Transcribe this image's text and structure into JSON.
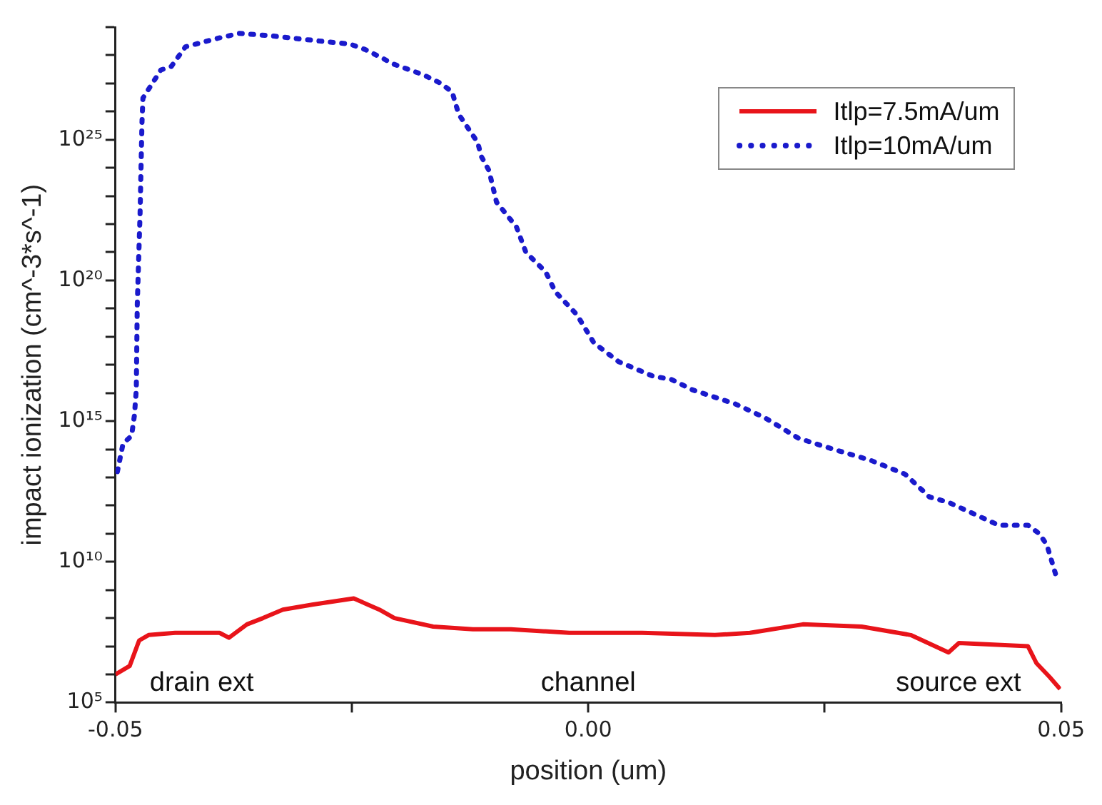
{
  "chart_data": {
    "type": "line",
    "xlabel": "position (um)",
    "ylabel": "impact ionization (cm^-3*s^-1)",
    "log": "y",
    "grid": false,
    "legend": "top right",
    "marker": "none",
    "xlim": [
      -0.05,
      0.05
    ],
    "xticks": [
      -0.05,
      {
        "value": -0.025,
        "label": null
      },
      {
        "value": 0,
        "label": "0.00"
      },
      {
        "value": 0.025,
        "label": null
      },
      0.05
    ],
    "ylim": [
      100000.0,
      1e+29
    ],
    "yticks": [
      {
        "value": 100000.0,
        "label": "10⁵"
      },
      {
        "value": 1000000.0,
        "label": null
      },
      {
        "value": 10000000.0,
        "label": null
      },
      {
        "value": 100000000.0,
        "label": null
      },
      {
        "value": 1000000000.0,
        "label": null
      },
      {
        "value": 10000000000.0,
        "label": "10¹⁰"
      },
      {
        "value": 100000000000.0,
        "label": null
      },
      {
        "value": 1000000000000.0,
        "label": null
      },
      {
        "value": 10000000000000.0,
        "label": null
      },
      {
        "value": 100000000000000.0,
        "label": null
      },
      {
        "value": 1000000000000000.0,
        "label": "10¹⁵"
      },
      {
        "value": 1e+16,
        "label": null
      },
      {
        "value": 1e+17,
        "label": null
      },
      {
        "value": 1e+18,
        "label": null
      },
      {
        "value": 1e+19,
        "label": null
      },
      {
        "value": 1e+20,
        "label": "10²⁰"
      },
      {
        "value": 1e+21,
        "label": null
      },
      {
        "value": 1e+22,
        "label": null
      },
      {
        "value": 1e+23,
        "label": null
      },
      {
        "value": 1e+24,
        "label": null
      },
      {
        "value": 1e+25,
        "label": "10²⁵"
      },
      {
        "value": 1e+26,
        "label": null
      },
      {
        "value": 1e+27,
        "label": null
      },
      {
        "value": 1e+28,
        "label": null
      },
      {
        "value": 1e+29,
        "label": null
      }
    ],
    "annotations": [
      "drain ext",
      "channel",
      "source ext"
    ],
    "series": [
      {
        "name": "Itlp=7.5mA/um",
        "color": "#e8141a",
        "line_style": "solid",
        "x": [
          -0.05,
          -0.0485,
          -0.0475,
          -0.0465,
          -0.0437,
          -0.039,
          -0.038,
          -0.0361,
          -0.0344,
          -0.0323,
          -0.0292,
          -0.0248,
          -0.0221,
          -0.0205,
          -0.0164,
          -0.0122,
          -0.0082,
          -0.002,
          0.0057,
          0.0134,
          0.0171,
          0.0227,
          0.0289,
          0.0341,
          0.0381,
          0.0392,
          0.0465,
          0.0474,
          0.0488,
          0.0499
        ],
        "values": [
          1000000.0,
          2000000.0,
          16000000.0,
          25000000.0,
          30000000.0,
          30000000.0,
          20000000.0,
          60000000.0,
          100000000.0,
          200000000.0,
          300000000.0,
          500000000.0,
          200000000.0,
          100000000.0,
          50000000.0,
          40000000.0,
          40000000.0,
          30000000.0,
          30000000.0,
          25000000.0,
          30000000.0,
          60000000.0,
          50000000.0,
          25000000.0,
          6000000.0,
          13000000.0,
          10000000.0,
          2500000.0,
          800000.0,
          300000.0
        ]
      },
      {
        "name": "Itlp=10mA/um",
        "color": "#1a1acc",
        "line_style": "dotted",
        "x": [
          -0.0498,
          -0.0492,
          -0.0483,
          -0.048,
          -0.0478,
          -0.0477,
          -0.0474,
          -0.0472,
          -0.0471,
          -0.0452,
          -0.0441,
          -0.0426,
          -0.0392,
          -0.0369,
          -0.0338,
          -0.0276,
          -0.0252,
          -0.0236,
          -0.0218,
          -0.0207,
          -0.0174,
          -0.0156,
          -0.0144,
          -0.0137,
          -0.0117,
          -0.0113,
          -0.0105,
          -0.0097,
          -0.0076,
          -0.0066,
          -0.0045,
          -0.0035,
          -0.0012,
          0.0006,
          0.0032,
          0.0068,
          0.0088,
          0.011,
          0.0156,
          0.0187,
          0.0222,
          0.0248,
          0.0299,
          0.0335,
          0.0361,
          0.0381,
          0.0434,
          0.0465,
          0.0477,
          0.0485,
          0.0495
        ],
        "values": [
          16000000000000.0,
          160000000000000.0,
          300000000000000.0,
          1600000000000000.0,
          1.3e+16,
          1.3e+19,
          2.5e+22,
          4e+25,
          3e+26,
          3e+27,
          4e+27,
          2e+28,
          4e+28,
          6e+28,
          5e+28,
          3e+28,
          2.5e+28,
          1.6e+28,
          8e+27,
          5e+27,
          2e+27,
          1e+27,
          5e+26,
          8e+25,
          8e+24,
          2.5e+24,
          8e+23,
          6e+22,
          8e+21,
          1e+21,
          2e+20,
          4e+19,
          6e+18,
          6e+17,
          1.3e+17,
          4e+16,
          3e+16,
          1.3e+16,
          4000000000000000.0,
          1300000000000000.0,
          250000000000000.0,
          130000000000000.0,
          40000000000000.0,
          13000000000000.0,
          2000000000000.0,
          1300000000000.0,
          200000000000.0,
          200000000000.0,
          100000000000.0,
          40000000000.0,
          3000000000.0
        ]
      }
    ]
  }
}
